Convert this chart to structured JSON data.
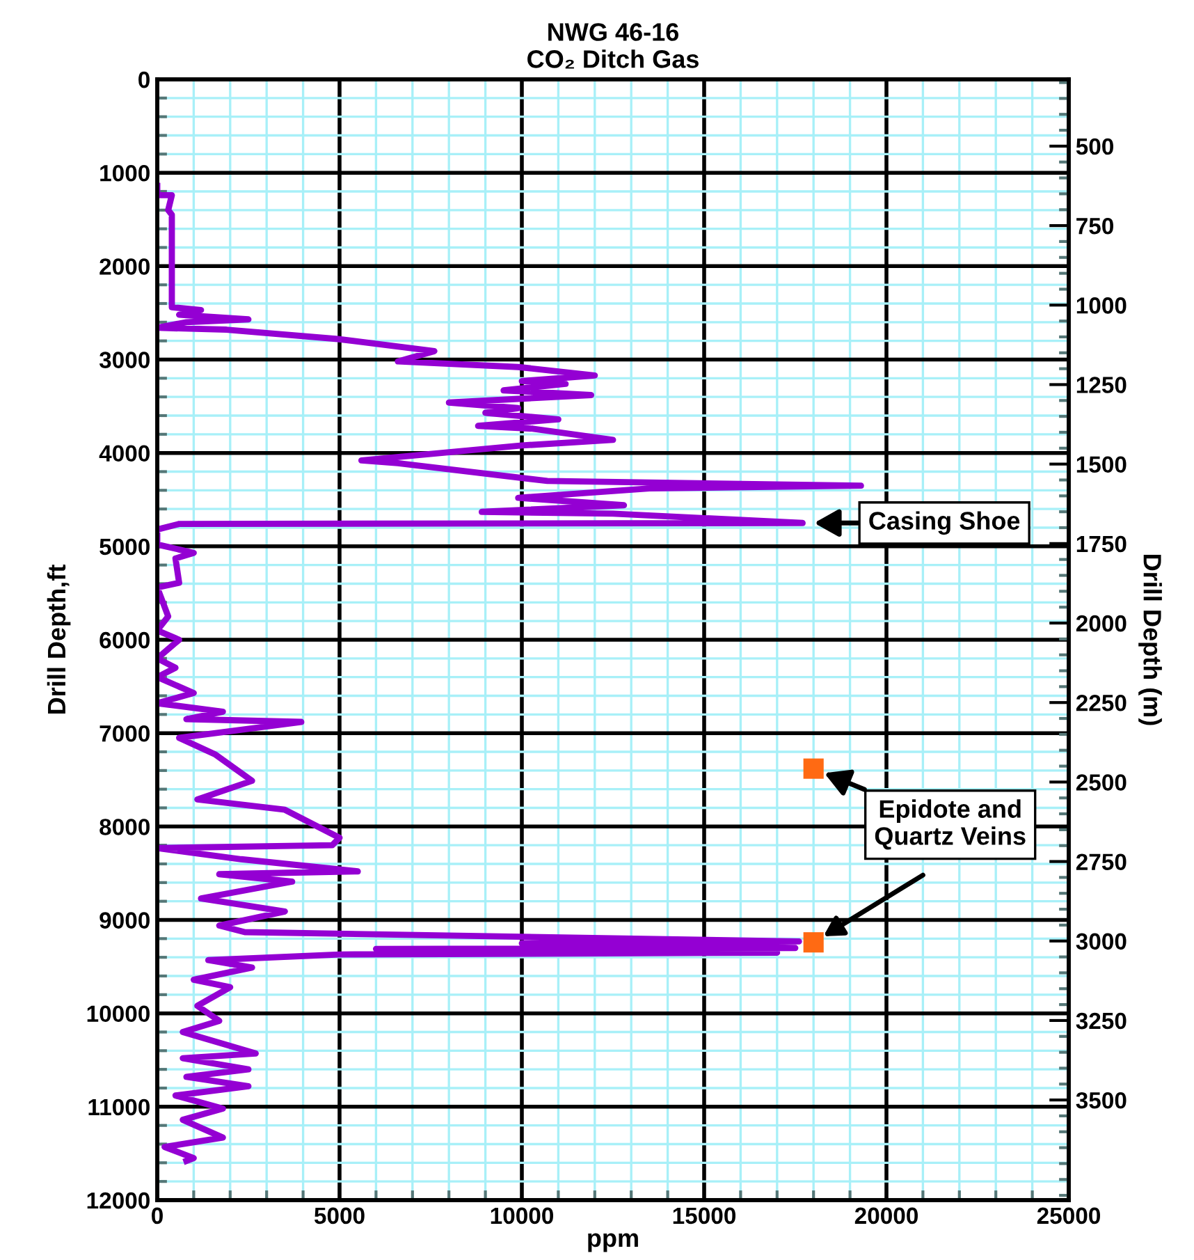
{
  "chart_data": {
    "type": "line",
    "title": "NWG 46-16\nCO₂ Ditch Gas",
    "xlabel": "ppm",
    "ylabel": "Drill Depth,ft",
    "y2label": "Drill Depth (m)",
    "xlim": [
      0,
      25000
    ],
    "ylim": [
      12000,
      0
    ],
    "y2lim": [
      3815,
      290
    ],
    "xticks": [
      0,
      {
        "value": 1000,
        "label": null
      },
      {
        "value": 2000,
        "label": null
      },
      {
        "value": 3000,
        "label": null
      },
      {
        "value": 4000,
        "label": null
      },
      5000,
      {
        "value": 6000,
        "label": null
      },
      {
        "value": 7000,
        "label": null
      },
      {
        "value": 8000,
        "label": null
      },
      {
        "value": 9000,
        "label": null
      },
      10000,
      {
        "value": 11000,
        "label": null
      },
      {
        "value": 12000,
        "label": null
      },
      {
        "value": 13000,
        "label": null
      },
      {
        "value": 14000,
        "label": null
      },
      15000,
      {
        "value": 16000,
        "label": null
      },
      {
        "value": 17000,
        "label": null
      },
      {
        "value": 18000,
        "label": null
      },
      {
        "value": 19000,
        "label": null
      },
      20000,
      {
        "value": 21000,
        "label": null
      },
      {
        "value": 22000,
        "label": null
      },
      {
        "value": 23000,
        "label": null
      },
      {
        "value": 24000,
        "label": null
      },
      25000
    ],
    "yticks": [
      0,
      {
        "value": 200,
        "label": null
      },
      {
        "value": 400,
        "label": null
      },
      {
        "value": 600,
        "label": null
      },
      {
        "value": 800,
        "label": null
      },
      1000,
      {
        "value": 1200,
        "label": null
      },
      {
        "value": 1400,
        "label": null
      },
      {
        "value": 1600,
        "label": null
      },
      {
        "value": 1800,
        "label": null
      },
      2000,
      {
        "value": 2200,
        "label": null
      },
      {
        "value": 2400,
        "label": null
      },
      {
        "value": 2600,
        "label": null
      },
      {
        "value": 2800,
        "label": null
      },
      3000,
      {
        "value": 3200,
        "label": null
      },
      {
        "value": 3400,
        "label": null
      },
      {
        "value": 3600,
        "label": null
      },
      {
        "value": 3800,
        "label": null
      },
      4000,
      {
        "value": 4200,
        "label": null
      },
      {
        "value": 4400,
        "label": null
      },
      {
        "value": 4600,
        "label": null
      },
      {
        "value": 4800,
        "label": null
      },
      5000,
      {
        "value": 5200,
        "label": null
      },
      {
        "value": 5400,
        "label": null
      },
      {
        "value": 5600,
        "label": null
      },
      {
        "value": 5800,
        "label": null
      },
      6000,
      {
        "value": 6200,
        "label": null
      },
      {
        "value": 6400,
        "label": null
      },
      {
        "value": 6600,
        "label": null
      },
      {
        "value": 6800,
        "label": null
      },
      7000,
      {
        "value": 7200,
        "label": null
      },
      {
        "value": 7400,
        "label": null
      },
      {
        "value": 7600,
        "label": null
      },
      {
        "value": 7800,
        "label": null
      },
      8000,
      {
        "value": 8200,
        "label": null
      },
      {
        "value": 8400,
        "label": null
      },
      {
        "value": 8600,
        "label": null
      },
      {
        "value": 8800,
        "label": null
      },
      9000,
      {
        "value": 9200,
        "label": null
      },
      {
        "value": 9400,
        "label": null
      },
      {
        "value": 9600,
        "label": null
      },
      {
        "value": 9800,
        "label": null
      },
      10000,
      {
        "value": 10200,
        "label": null
      },
      {
        "value": 10400,
        "label": null
      },
      {
        "value": 10600,
        "label": null
      },
      {
        "value": 10800,
        "label": null
      },
      11000,
      {
        "value": 11200,
        "label": null
      },
      {
        "value": 11400,
        "label": null
      },
      {
        "value": 11600,
        "label": null
      },
      {
        "value": 11800,
        "label": null
      },
      12000
    ],
    "y2ticks": [
      {
        "value": 300,
        "label": null
      },
      {
        "value": 350,
        "label": null
      },
      {
        "value": 400,
        "label": null
      },
      {
        "value": 450,
        "label": null
      },
      500,
      {
        "value": 550,
        "label": null
      },
      {
        "value": 600,
        "label": null
      },
      {
        "value": 650,
        "label": null
      },
      {
        "value": 700,
        "label": null
      },
      750,
      {
        "value": 800,
        "label": null
      },
      {
        "value": 850,
        "label": null
      },
      {
        "value": 900,
        "label": null
      },
      {
        "value": 950,
        "label": null
      },
      1000,
      {
        "value": 1050,
        "label": null
      },
      {
        "value": 1100,
        "label": null
      },
      {
        "value": 1150,
        "label": null
      },
      {
        "value": 1200,
        "label": null
      },
      1250,
      {
        "value": 1300,
        "label": null
      },
      {
        "value": 1350,
        "label": null
      },
      {
        "value": 1400,
        "label": null
      },
      {
        "value": 1450,
        "label": null
      },
      1500,
      {
        "value": 1550,
        "label": null
      },
      {
        "value": 1600,
        "label": null
      },
      {
        "value": 1650,
        "label": null
      },
      {
        "value": 1700,
        "label": null
      },
      1750,
      {
        "value": 1800,
        "label": null
      },
      {
        "value": 1850,
        "label": null
      },
      {
        "value": 1900,
        "label": null
      },
      {
        "value": 1950,
        "label": null
      },
      2000,
      {
        "value": 2050,
        "label": null
      },
      {
        "value": 2100,
        "label": null
      },
      {
        "value": 2150,
        "label": null
      },
      {
        "value": 2200,
        "label": null
      },
      2250,
      {
        "value": 2300,
        "label": null
      },
      {
        "value": 2350,
        "label": null
      },
      {
        "value": 2400,
        "label": null
      },
      {
        "value": 2450,
        "label": null
      },
      2500,
      {
        "value": 2550,
        "label": null
      },
      {
        "value": 2600,
        "label": null
      },
      {
        "value": 2650,
        "label": null
      },
      {
        "value": 2700,
        "label": null
      },
      2750,
      {
        "value": 2800,
        "label": null
      },
      {
        "value": 2850,
        "label": null
      },
      {
        "value": 2900,
        "label": null
      },
      {
        "value": 2950,
        "label": null
      },
      3000,
      {
        "value": 3050,
        "label": null
      },
      {
        "value": 3100,
        "label": null
      },
      {
        "value": 3150,
        "label": null
      },
      {
        "value": 3200,
        "label": null
      },
      3250,
      {
        "value": 3300,
        "label": null
      },
      {
        "value": 3350,
        "label": null
      },
      {
        "value": 3400,
        "label": null
      },
      {
        "value": 3450,
        "label": null
      },
      3500,
      {
        "value": 3550,
        "label": null
      },
      {
        "value": 3600,
        "label": null
      },
      {
        "value": 3650,
        "label": null
      },
      {
        "value": 3700,
        "label": null
      },
      {
        "value": 3750,
        "label": null
      },
      {
        "value": 3800,
        "label": null
      }
    ],
    "grid": true,
    "line_style": "solid",
    "series": [
      {
        "color": "#9400d3",
        "marker": "none",
        "x": [
          0,
          0,
          400,
          300,
          400,
          400,
          1200,
          600,
          2500,
          800,
          0,
          1900,
          4950,
          7600,
          6600,
          9900,
          12000,
          10000,
          11200,
          9500,
          11900,
          8000,
          9900,
          9000,
          11000,
          8800,
          10300,
          12500,
          10000,
          5600,
          6600,
          10700,
          19300,
          13500,
          9900,
          12800,
          8900,
          12500,
          17700,
          600,
          0,
          0,
          1000,
          500,
          600,
          0,
          300,
          0,
          600,
          0,
          500,
          0,
          1000,
          0,
          1800,
          800,
          3950,
          600,
          1600,
          2600,
          1100,
          3500,
          5000,
          4800,
          0,
          2300,
          5500,
          1700,
          3700,
          1200,
          3500,
          1700,
          2400,
          17600,
          10000,
          17500,
          6000,
          17000,
          5000,
          1400,
          2600,
          1000,
          2000,
          1100,
          1700,
          700,
          2700,
          700,
          2500,
          800,
          2500,
          500,
          1800,
          700,
          1800,
          200,
          1000,
          800
        ],
        "values": [
          1140,
          1240,
          1240,
          1400,
          1450,
          2440,
          2470,
          2520,
          2570,
          2600,
          2660,
          2680,
          2780,
          2910,
          3020,
          3080,
          3170,
          3230,
          3260,
          3330,
          3380,
          3460,
          3520,
          3570,
          3640,
          3710,
          3740,
          3860,
          3920,
          4080,
          4110,
          4300,
          4350,
          4380,
          4480,
          4560,
          4630,
          4650,
          4750,
          4760,
          4820,
          4980,
          5070,
          5130,
          5390,
          5440,
          5750,
          5900,
          6000,
          6200,
          6300,
          6400,
          6570,
          6680,
          6770,
          6850,
          6880,
          7050,
          7230,
          7510,
          7710,
          7820,
          8120,
          8200,
          8230,
          8350,
          8480,
          8510,
          8590,
          8770,
          8910,
          9060,
          9130,
          9230,
          9250,
          9300,
          9310,
          9350,
          9370,
          9430,
          9510,
          9640,
          9720,
          9920,
          10080,
          10200,
          10430,
          10480,
          10600,
          10680,
          10780,
          10880,
          11020,
          11140,
          11330,
          11430,
          11550,
          11580
        ]
      },
      {
        "type": "scatter",
        "color": "#ff6a13",
        "marker": "square",
        "x": [
          18000,
          18000
        ],
        "values": [
          7380,
          9240
        ]
      }
    ],
    "annotations": [
      {
        "text": "Casing Shoe",
        "x": 17700,
        "y": 4750
      },
      {
        "text": "Epidote and\nQuartz Veins",
        "x": 18000,
        "y": 7380
      }
    ]
  }
}
